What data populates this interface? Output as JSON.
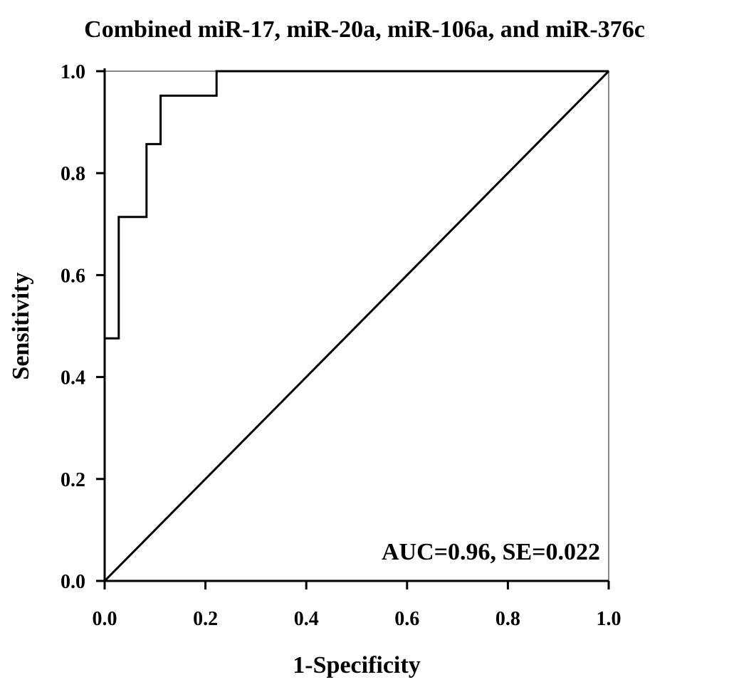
{
  "chart_data": {
    "type": "line",
    "title": "Combined miR-17, miR-20a, miR-106a, and miR-376c",
    "xlabel": "1-Specificity",
    "ylabel": "Sensitivity",
    "xlim": [
      0,
      1
    ],
    "ylim": [
      0,
      1
    ],
    "xticks": [
      "0.0",
      "0.2",
      "0.4",
      "0.6",
      "0.8",
      "1.0"
    ],
    "yticks": [
      "0.0",
      "0.2",
      "0.4",
      "0.6",
      "0.8",
      "1.0"
    ],
    "grid": false,
    "annotation": "AUC=0.96, SE=0.022",
    "series": [
      {
        "x": [
          0,
          0,
          0.028,
          0.028,
          0.083,
          0.083,
          0.111,
          0.111,
          0.222,
          0.222,
          1.0
        ],
        "y": [
          0,
          0.476,
          0.476,
          0.714,
          0.714,
          0.857,
          0.857,
          0.952,
          0.952,
          1.0,
          1.0
        ]
      },
      {
        "x": [
          0,
          1
        ],
        "y": [
          0,
          1
        ]
      }
    ],
    "colors": {
      "line": "#000000",
      "axis": "#000000",
      "frame": "#888888"
    }
  }
}
